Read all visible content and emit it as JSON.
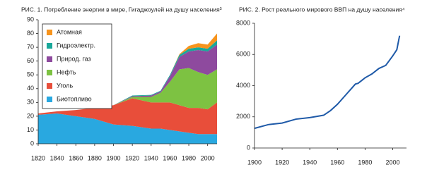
{
  "chart_data": [
    {
      "type": "stacked-area",
      "title": "РИС. 1. Потребление энергии в мире, Гигаджоулей на душу населения³",
      "x": [
        1820,
        1840,
        1860,
        1880,
        1900,
        1920,
        1940,
        1950,
        1960,
        1970,
        1980,
        1990,
        2000,
        2010
      ],
      "series": [
        {
          "name": "Биотопливо",
          "color": "#29a8e0",
          "values": [
            21,
            22,
            20,
            18,
            14,
            13,
            11,
            11,
            10,
            9,
            8,
            7,
            7,
            7
          ]
        },
        {
          "name": "Уголь",
          "color": "#e84e3a",
          "values": [
            1,
            1.5,
            4.5,
            8,
            14,
            20,
            19,
            19,
            20,
            19,
            18,
            19,
            18,
            23
          ]
        },
        {
          "name": "Нефть",
          "color": "#7dc242",
          "values": [
            0,
            0,
            0,
            0,
            0,
            1,
            4,
            7,
            15,
            26,
            29,
            26,
            25,
            24
          ]
        },
        {
          "name": "Природ. газ",
          "color": "#8e4a9e",
          "values": [
            0,
            0,
            0,
            0,
            0,
            0.5,
            1,
            1,
            4,
            9,
            12,
            16,
            17,
            18
          ]
        },
        {
          "name": "Гидроэлектр.",
          "color": "#1aa89a",
          "values": [
            0,
            0,
            0,
            0,
            0,
            0.5,
            0.5,
            0.5,
            1,
            1.5,
            2,
            2,
            2,
            3
          ]
        },
        {
          "name": "Атомная",
          "color": "#f7941d",
          "values": [
            0,
            0,
            0,
            0,
            0,
            0,
            0,
            0,
            0,
            0.5,
            2,
            3,
            3,
            5
          ]
        }
      ],
      "xlim": [
        1820,
        2010
      ],
      "xticks": [
        1820,
        1840,
        1860,
        1880,
        1900,
        1920,
        1940,
        1960,
        1980,
        2000
      ],
      "ylim": [
        0,
        90
      ],
      "yticks": [
        0,
        10,
        20,
        30,
        40,
        50,
        60,
        70,
        80,
        90
      ],
      "grid": false,
      "legend": "upper left"
    },
    {
      "type": "line",
      "title": "РИС. 2. Рост реального мирового ВВП на душу населения⁴",
      "x": [
        1900,
        1910,
        1920,
        1930,
        1940,
        1950,
        1955,
        1960,
        1965,
        1970,
        1973,
        1975,
        1980,
        1985,
        1990,
        1995,
        2000,
        2003,
        2005
      ],
      "series": [
        {
          "name": "ВВП",
          "color": "#1f5aa8",
          "values": [
            1260,
            1500,
            1600,
            1850,
            1950,
            2100,
            2400,
            2800,
            3300,
            3800,
            4100,
            4150,
            4500,
            4750,
            5100,
            5300,
            5900,
            6300,
            7200
          ]
        }
      ],
      "xlim": [
        1900,
        2010
      ],
      "xticks": [
        1900,
        1920,
        1940,
        1960,
        1980,
        2000
      ],
      "ylim": [
        0,
        8000
      ],
      "yticks": [
        0,
        2000,
        4000,
        6000,
        8000
      ],
      "grid": false
    }
  ]
}
